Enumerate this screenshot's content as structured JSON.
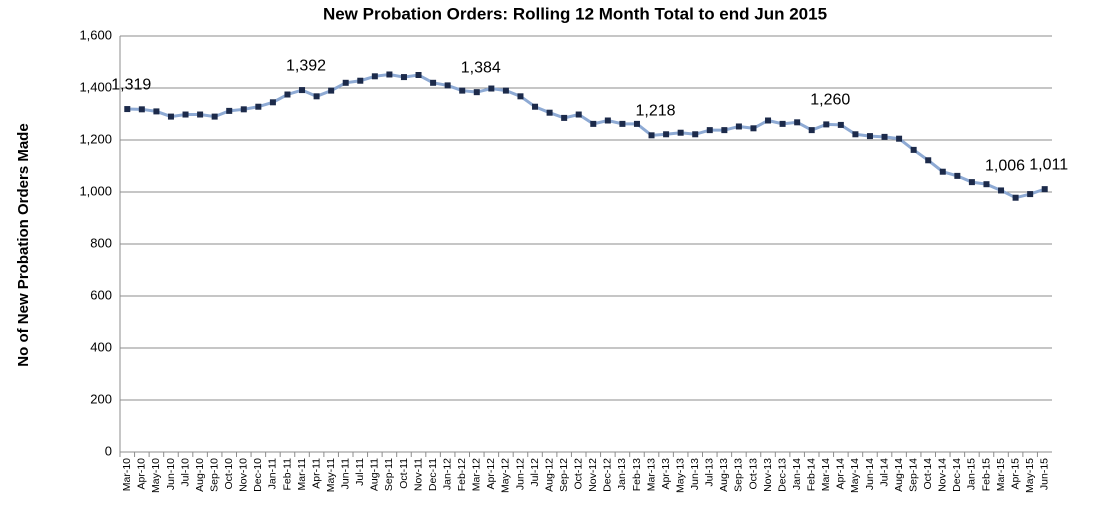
{
  "chart_data": {
    "type": "line",
    "title": "New Probation  Orders:  Rolling 12 Month  Total to end Jun 2015",
    "y_label": "No of New Probation Orders Made",
    "categories": [
      "Mar-10",
      "Apr-10",
      "May-10",
      "Jun-10",
      "Jul-10",
      "Aug-10",
      "Sep-10",
      "Oct-10",
      "Nov-10",
      "Dec-10",
      "Jan-11",
      "Feb-11",
      "Mar-11",
      "Apr-11",
      "May-11",
      "Jun-11",
      "Jul-11",
      "Aug-11",
      "Sep-11",
      "Oct-11",
      "Nov-11",
      "Dec-11",
      "Jan-12",
      "Feb-12",
      "Mar-12",
      "Apr-12",
      "May-12",
      "Jun-12",
      "Jul-12",
      "Aug-12",
      "Sep-12",
      "Oct-12",
      "Nov-12",
      "Dec-12",
      "Jan-13",
      "Feb-13",
      "Mar-13",
      "Apr-13",
      "May-13",
      "Jun-13",
      "Jul-13",
      "Aug-13",
      "Sep-13",
      "Oct-13",
      "Nov-13",
      "Dec-13",
      "Jan-14",
      "Feb-14",
      "Mar-14",
      "Apr-14",
      "May-14",
      "Jun-14",
      "Jul-14",
      "Aug-14",
      "Sep-14",
      "Oct-14",
      "Nov-14",
      "Dec-14",
      "Jan-15",
      "Feb-15",
      "Mar-15",
      "Apr-15",
      "May-15",
      "Jun-15"
    ],
    "series": [
      {
        "name": "New Probation Orders",
        "color": "#8eaad4",
        "marker_color": "#1c2a4a",
        "values": [
          1319,
          1318,
          1310,
          1290,
          1298,
          1298,
          1290,
          1312,
          1318,
          1328,
          1345,
          1375,
          1392,
          1368,
          1390,
          1420,
          1428,
          1445,
          1452,
          1442,
          1450,
          1420,
          1410,
          1390,
          1384,
          1398,
          1390,
          1368,
          1328,
          1305,
          1285,
          1298,
          1262,
          1275,
          1262,
          1262,
          1218,
          1222,
          1228,
          1222,
          1238,
          1238,
          1252,
          1245,
          1275,
          1262,
          1268,
          1238,
          1260,
          1258,
          1222,
          1215,
          1212,
          1205,
          1162,
          1122,
          1078,
          1062,
          1038,
          1030,
          1006,
          978,
          992,
          1011
        ],
        "value_labels": [
          "1,319",
          null,
          null,
          null,
          null,
          null,
          null,
          null,
          null,
          null,
          null,
          null,
          "1,392",
          null,
          null,
          null,
          null,
          null,
          null,
          null,
          null,
          null,
          null,
          null,
          "1,384",
          null,
          null,
          null,
          null,
          null,
          null,
          null,
          null,
          null,
          null,
          null,
          "1,218",
          null,
          null,
          null,
          null,
          null,
          null,
          null,
          null,
          null,
          null,
          null,
          "1,260",
          null,
          null,
          null,
          null,
          null,
          null,
          null,
          null,
          null,
          null,
          null,
          "1,006",
          null,
          null,
          "1,011"
        ]
      }
    ],
    "ylim": [
      0,
      1600
    ],
    "yticks": [
      0,
      200,
      400,
      600,
      800,
      {
        "value": 1000,
        "label": "1,000"
      },
      {
        "value": 1200,
        "label": "1,200"
      },
      {
        "value": 1400,
        "label": "1,400"
      },
      {
        "value": 1600,
        "label": "1,600"
      }
    ],
    "grid": true
  }
}
